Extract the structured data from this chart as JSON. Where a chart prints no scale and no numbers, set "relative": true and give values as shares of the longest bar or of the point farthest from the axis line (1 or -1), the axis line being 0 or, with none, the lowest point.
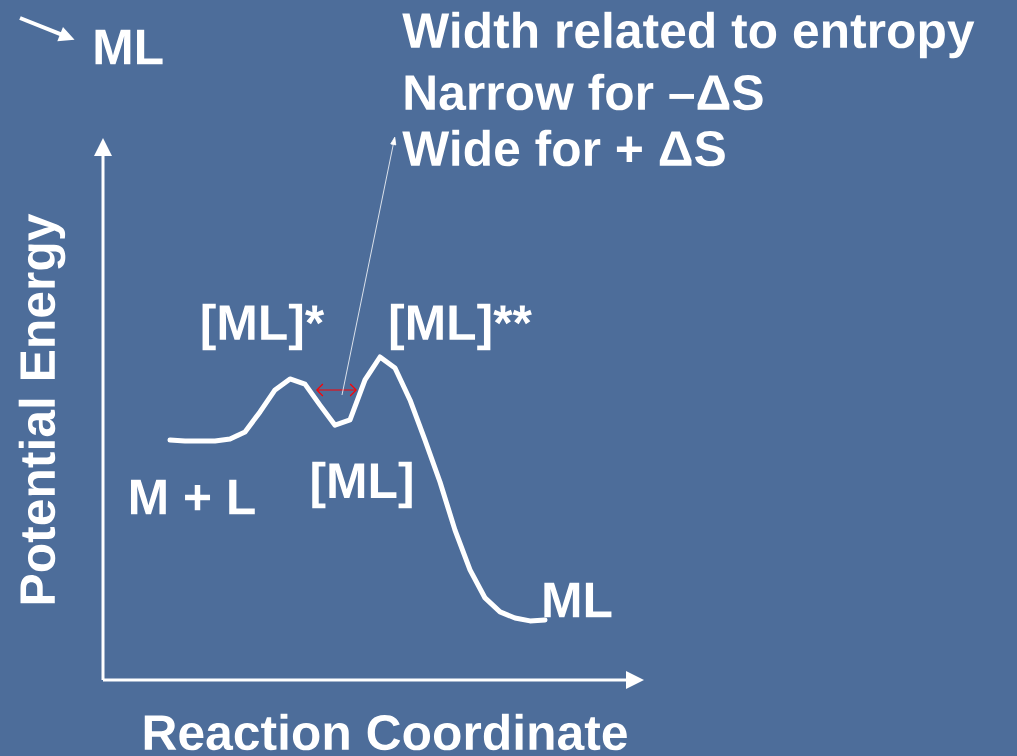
{
  "chart_data": {
    "type": "line",
    "relative": true,
    "color": "#ffffff",
    "xlabel": "Reaction Coordinate",
    "ylabel": "Potential Energy",
    "categories": [
      null,
      null,
      null,
      null,
      null,
      null,
      null,
      null,
      null,
      null,
      null,
      null,
      null,
      null,
      null,
      null,
      null,
      null,
      null,
      null,
      null,
      null,
      null,
      null,
      null,
      null
    ],
    "values": [
      0.743,
      0.74,
      0.74,
      0.74,
      0.746,
      0.768,
      0.83,
      0.898,
      0.932,
      0.916,
      0.851,
      0.789,
      0.805,
      0.929,
      1,
      0.966,
      0.867,
      0.743,
      0.613,
      0.464,
      0.341,
      0.254,
      0.211,
      0.192,
      0.183,
      0.186
    ],
    "annotations": [
      "ML",
      "Width related to entropy",
      "Narrow for –ΔS",
      "Wide for + ΔS",
      "[ML]*",
      "[ML]**",
      "M + L",
      "[ML]",
      "ML"
    ]
  }
}
